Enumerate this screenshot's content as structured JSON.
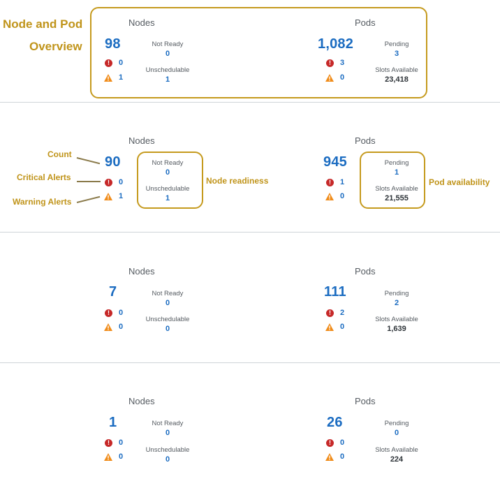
{
  "annotations": {
    "overview_line1": "Node and Pod",
    "overview_line2": "Overview",
    "count": "Count",
    "critical": "Critical Alerts",
    "warning": "Warning Alerts",
    "node_readiness": "Node readiness",
    "pod_availability": "Pod availability"
  },
  "labels": {
    "nodes": "Nodes",
    "pods": "Pods",
    "not_ready": "Not Ready",
    "unschedulable": "Unschedulable",
    "pending": "Pending",
    "slots_available": "Slots Available",
    "critical_glyph": "!"
  },
  "panels": [
    {
      "nodes": {
        "count": "98",
        "critical": "0",
        "warning": "1",
        "not_ready": "0",
        "unschedulable": "1"
      },
      "pods": {
        "count": "1,082",
        "critical": "3",
        "warning": "0",
        "pending": "3",
        "slots_available": "23,418"
      }
    },
    {
      "nodes": {
        "count": "90",
        "critical": "0",
        "warning": "1",
        "not_ready": "0",
        "unschedulable": "1"
      },
      "pods": {
        "count": "945",
        "critical": "1",
        "warning": "0",
        "pending": "1",
        "slots_available": "21,555"
      }
    },
    {
      "nodes": {
        "count": "7",
        "critical": "0",
        "warning": "0",
        "not_ready": "0",
        "unschedulable": "0"
      },
      "pods": {
        "count": "111",
        "critical": "2",
        "warning": "0",
        "pending": "2",
        "slots_available": "1,639"
      }
    },
    {
      "nodes": {
        "count": "1",
        "critical": "0",
        "warning": "0",
        "not_ready": "0",
        "unschedulable": "0"
      },
      "pods": {
        "count": "26",
        "critical": "0",
        "warning": "0",
        "pending": "0",
        "slots_available": "224"
      }
    }
  ],
  "colors": {
    "accent_blue": "#1b6cc1",
    "annotation_gold": "#c0941a",
    "critical_red": "#c62828",
    "warning_orange": "#f08c1a"
  }
}
